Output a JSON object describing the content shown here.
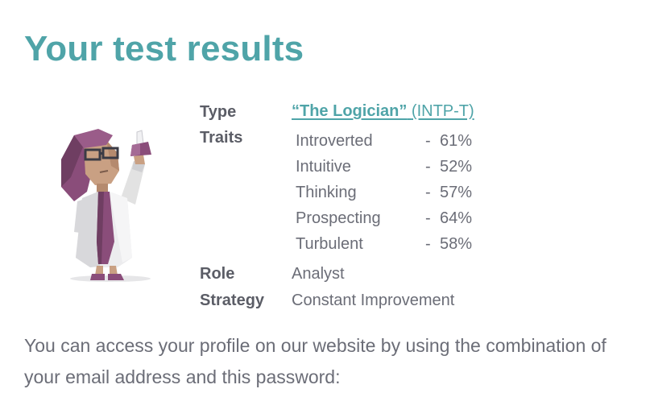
{
  "page": {
    "title": "Your test results"
  },
  "results": {
    "type_label": "Type",
    "type_name": "“The Logician”",
    "type_code": "(INTP-T)",
    "traits_label": "Traits",
    "traits": [
      {
        "name": "Introverted",
        "dash": "-",
        "percent": "61%"
      },
      {
        "name": "Intuitive",
        "dash": "-",
        "percent": "52%"
      },
      {
        "name": "Thinking",
        "dash": "-",
        "percent": "57%"
      },
      {
        "name": "Prospecting",
        "dash": "-",
        "percent": "64%"
      },
      {
        "name": "Turbulent",
        "dash": "-",
        "percent": "58%"
      }
    ],
    "role_label": "Role",
    "role_value": "Analyst",
    "strategy_label": "Strategy",
    "strategy_value": "Constant Improvement"
  },
  "footer": {
    "text": "You can access your profile on our website by using the combination of your email address and this password:"
  },
  "colors": {
    "accent": "#4fa4a8",
    "text": "#6b6d77",
    "label": "#5b5d66"
  },
  "icons": {
    "avatar": "logician-scientist-illustration"
  }
}
